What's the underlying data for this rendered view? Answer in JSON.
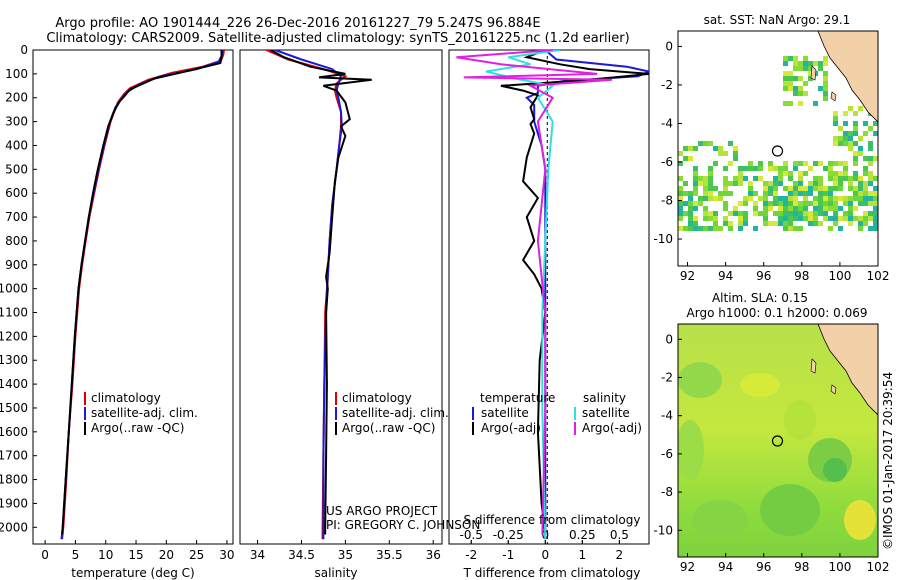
{
  "header": {
    "line1": "Argo profile: AO 1901444_226 26-Dec-2016 20161227_79 5.247S 96.884E",
    "line2": "Climatology: CARS2009. Satellite-adjusted climatology: synTS_20161225.nc (1.2d earlier)"
  },
  "colors": {
    "climatology": "#e00000",
    "satellite": "#1a1ad8",
    "argo": "#000000",
    "sal_satellite": "#30e0e0",
    "sal_argo": "#e020e0"
  },
  "credits": {
    "project": "US ARGO PROJECT",
    "pi": "PI: GREGORY C. JOHNSON",
    "stamp": "©IMOS 01-Jan-2017 20:39:54"
  },
  "maps": {
    "sst_title": "sat. SST: NaN Argo: 29.1",
    "sla_title_1": "Altim. SLA: 0.15",
    "sla_title_2": "Argo h1000: 0.1 h2000: 0.069",
    "lon_ticks": [
      "92",
      "94",
      "96",
      "98",
      "100",
      "102"
    ],
    "lat_ticks": [
      "0",
      "-2",
      "-4",
      "-6",
      "-8",
      "-10"
    ],
    "argo_position": {
      "lon": 96.884,
      "lat": -5.247
    }
  },
  "chart_data": [
    {
      "type": "line",
      "id": "temperature",
      "xlabel": "temperature (deg C)",
      "xlim": [
        -2,
        31
      ],
      "ylim": [
        0,
        2070
      ],
      "xticks": [
        "0",
        "5",
        "10",
        "15",
        "20",
        "25",
        "30"
      ],
      "yticks": [
        "0",
        "100",
        "200",
        "300",
        "400",
        "500",
        "600",
        "700",
        "800",
        "900",
        "1000",
        "1100",
        "1200",
        "1300",
        "1400",
        "1500",
        "1600",
        "1700",
        "1800",
        "1900",
        "2000"
      ],
      "legend": [
        "climatology",
        "satellite-adj. clim.",
        "Argo(..raw -QC)"
      ],
      "series": [
        {
          "name": "climatology",
          "color": "#e00000",
          "points": [
            [
              29.5,
              0
            ],
            [
              29.4,
              20
            ],
            [
              29,
              45
            ],
            [
              26,
              70
            ],
            [
              21,
              95
            ],
            [
              17,
              125
            ],
            [
              14,
              160
            ],
            [
              13,
              185
            ],
            [
              12,
              220
            ],
            [
              10.8,
              300
            ],
            [
              9.8,
              400
            ],
            [
              8.9,
              500
            ],
            [
              8.1,
              600
            ],
            [
              7.3,
              700
            ],
            [
              6.7,
              800
            ],
            [
              6.1,
              900
            ],
            [
              5.6,
              1000
            ],
            [
              5.0,
              1200
            ],
            [
              4.5,
              1400
            ],
            [
              3.9,
              1600
            ],
            [
              3.5,
              1800
            ],
            [
              3.0,
              2000
            ],
            [
              2.8,
              2050
            ]
          ]
        },
        {
          "name": "satellite-adj. clim.",
          "color": "#1a1ad8",
          "points": [
            [
              29.3,
              0
            ],
            [
              29.2,
              20
            ],
            [
              28.6,
              50
            ],
            [
              25,
              80
            ],
            [
              19,
              110
            ],
            [
              15.5,
              145
            ],
            [
              13.6,
              175
            ],
            [
              12.6,
              205
            ],
            [
              11.6,
              240
            ],
            [
              10.6,
              310
            ],
            [
              9.7,
              400
            ],
            [
              8.8,
              500
            ],
            [
              8.0,
              600
            ],
            [
              7.2,
              700
            ],
            [
              6.6,
              800
            ],
            [
              6.0,
              900
            ],
            [
              5.5,
              1000
            ],
            [
              4.9,
              1200
            ],
            [
              4.4,
              1400
            ],
            [
              3.9,
              1600
            ],
            [
              3.4,
              1800
            ],
            [
              2.9,
              2000
            ],
            [
              2.7,
              2050
            ]
          ]
        },
        {
          "name": "Argo(..raw -QC)",
          "color": "#000000",
          "points": [
            [
              29.1,
              0
            ],
            [
              29.1,
              30
            ],
            [
              28.9,
              55
            ],
            [
              24,
              85
            ],
            [
              18,
              120
            ],
            [
              14,
              165
            ],
            [
              13.2,
              190
            ],
            [
              12.3,
              215
            ],
            [
              11.3,
              260
            ],
            [
              10.4,
              320
            ],
            [
              9.6,
              400
            ],
            [
              8.7,
              500
            ],
            [
              7.9,
              600
            ],
            [
              7.2,
              700
            ],
            [
              6.6,
              800
            ],
            [
              6.0,
              900
            ],
            [
              5.5,
              1000
            ],
            [
              4.9,
              1200
            ],
            [
              4.4,
              1400
            ],
            [
              3.9,
              1600
            ],
            [
              3.4,
              1800
            ],
            [
              2.9,
              2000
            ],
            [
              2.8,
              2030
            ]
          ]
        }
      ]
    },
    {
      "type": "line",
      "id": "salinity",
      "xlabel": "salinity",
      "xlim": [
        33.8,
        36.1
      ],
      "ylim": [
        0,
        2070
      ],
      "xticks": [
        "34",
        "34.5",
        "35",
        "35.5",
        "36"
      ],
      "legend": [
        "climatology",
        "satellite-adj. clim.",
        "Argo(..raw -QC)"
      ],
      "series": [
        {
          "name": "climatology",
          "color": "#e00000",
          "points": [
            [
              34.1,
              0
            ],
            [
              34.35,
              40
            ],
            [
              34.75,
              80
            ],
            [
              35.0,
              110
            ],
            [
              34.9,
              140
            ],
            [
              34.88,
              170
            ],
            [
              34.9,
              200
            ],
            [
              34.95,
              260
            ],
            [
              34.95,
              320
            ],
            [
              34.93,
              400
            ],
            [
              34.9,
              500
            ],
            [
              34.85,
              650
            ],
            [
              34.82,
              800
            ],
            [
              34.8,
              950
            ],
            [
              34.77,
              1100
            ],
            [
              34.76,
              1400
            ],
            [
              34.75,
              1700
            ],
            [
              34.74,
              2000
            ],
            [
              34.74,
              2050
            ]
          ]
        },
        {
          "name": "satellite-adj. clim.",
          "color": "#1a1ad8",
          "points": [
            [
              34.2,
              0
            ],
            [
              34.5,
              40
            ],
            [
              34.85,
              80
            ],
            [
              34.95,
              110
            ],
            [
              34.92,
              140
            ],
            [
              34.9,
              170
            ],
            [
              34.92,
              200
            ],
            [
              34.95,
              260
            ],
            [
              34.96,
              320
            ],
            [
              34.93,
              400
            ],
            [
              34.9,
              500
            ],
            [
              34.85,
              650
            ],
            [
              34.82,
              800
            ],
            [
              34.8,
              950
            ],
            [
              34.78,
              1100
            ],
            [
              34.76,
              1400
            ],
            [
              34.75,
              1700
            ],
            [
              34.75,
              2000
            ],
            [
              34.75,
              2050
            ]
          ]
        },
        {
          "name": "Argo(..raw -QC)",
          "color": "#000000",
          "points": [
            [
              34.15,
              0
            ],
            [
              34.3,
              30
            ],
            [
              34.6,
              70
            ],
            [
              35.0,
              100
            ],
            [
              34.7,
              115
            ],
            [
              35.3,
              125
            ],
            [
              34.75,
              150
            ],
            [
              34.9,
              170
            ],
            [
              35.0,
              220
            ],
            [
              35.05,
              290
            ],
            [
              34.95,
              320
            ],
            [
              35.0,
              360
            ],
            [
              34.92,
              450
            ],
            [
              34.88,
              550
            ],
            [
              34.85,
              700
            ],
            [
              34.82,
              850
            ],
            [
              34.78,
              950
            ],
            [
              34.8,
              1000
            ],
            [
              34.78,
              1100
            ],
            [
              34.79,
              1400
            ],
            [
              34.78,
              1700
            ],
            [
              34.77,
              2000
            ],
            [
              34.77,
              2030
            ]
          ]
        }
      ]
    },
    {
      "type": "line",
      "id": "difference",
      "xlabel": "T difference from climatology",
      "xlabel_top": "S difference from climatology",
      "xlim": [
        -2.6,
        2.8
      ],
      "xlim_salinity": [
        -0.65,
        0.7
      ],
      "ylim": [
        0,
        2070
      ],
      "xticks": [
        "-2",
        "-1",
        "0",
        "1",
        "2"
      ],
      "xticks_salinity": [
        "-0.5",
        "-0.25",
        "0",
        "0.25",
        "0.5"
      ],
      "legend_temperature_title": "temperature",
      "legend_salinity_title": "salinity",
      "legend": [
        "satellite",
        "Argo(-adj)",
        "satellite",
        "Argo(-adj)"
      ],
      "series": [
        {
          "name": "satellite (T)",
          "color": "#1a1ad8",
          "points": [
            [
              0,
              0
            ],
            [
              0.3,
              40
            ],
            [
              2.2,
              70
            ],
            [
              2.8,
              90
            ],
            [
              2.5,
              110
            ],
            [
              0.5,
              130
            ],
            [
              -0.2,
              150
            ],
            [
              -0.2,
              180
            ],
            [
              -0.5,
              200
            ],
            [
              -0.3,
              230
            ],
            [
              -0.3,
              300
            ],
            [
              -0.1,
              400
            ],
            [
              0,
              500
            ],
            [
              0,
              700
            ],
            [
              0,
              1000
            ],
            [
              0,
              1400
            ],
            [
              0,
              1800
            ],
            [
              0,
              2050
            ]
          ]
        },
        {
          "name": "Argo-adj (T)",
          "color": "#000000",
          "points": [
            [
              0,
              0
            ],
            [
              -0.5,
              30
            ],
            [
              0.4,
              60
            ],
            [
              1.2,
              80
            ],
            [
              2.8,
              100
            ],
            [
              1.2,
              125
            ],
            [
              -1.2,
              150
            ],
            [
              -0.6,
              170
            ],
            [
              -0.2,
              190
            ],
            [
              -0.4,
              240
            ],
            [
              -0.3,
              290
            ],
            [
              -0.4,
              310
            ],
            [
              -0.3,
              350
            ],
            [
              -0.5,
              450
            ],
            [
              -0.6,
              550
            ],
            [
              -0.2,
              620
            ],
            [
              -0.5,
              700
            ],
            [
              -0.3,
              800
            ],
            [
              -0.6,
              880
            ],
            [
              -0.3,
              940
            ],
            [
              -0.1,
              1000
            ],
            [
              0,
              1100
            ],
            [
              -0.15,
              1300
            ],
            [
              -0.2,
              1600
            ],
            [
              -0.1,
              1900
            ],
            [
              0,
              2030
            ]
          ]
        },
        {
          "name": "satellite (S)",
          "color": "#30e0e0",
          "points": [
            [
              0.1,
              0
            ],
            [
              -0.25,
              30
            ],
            [
              -0.1,
              60
            ],
            [
              -0.4,
              90
            ],
            [
              -0.2,
              120
            ],
            [
              0.05,
              150
            ],
            [
              -0.05,
              200
            ],
            [
              0.05,
              300
            ],
            [
              0.02,
              500
            ],
            [
              0,
              800
            ],
            [
              -0.02,
              1100
            ],
            [
              -0.02,
              1500
            ],
            [
              0,
              2050
            ]
          ]
        },
        {
          "name": "Argo-adj (S)",
          "color": "#e020e0",
          "points": [
            [
              0.05,
              0
            ],
            [
              -0.6,
              30
            ],
            [
              -0.3,
              60
            ],
            [
              0.35,
              100
            ],
            [
              -0.55,
              115
            ],
            [
              0.45,
              125
            ],
            [
              -0.1,
              150
            ],
            [
              0.05,
              200
            ],
            [
              -0.05,
              300
            ],
            [
              0,
              500
            ],
            [
              -0.05,
              800
            ],
            [
              0,
              1100
            ],
            [
              0,
              1500
            ],
            [
              -0.02,
              2030
            ]
          ]
        }
      ]
    }
  ]
}
